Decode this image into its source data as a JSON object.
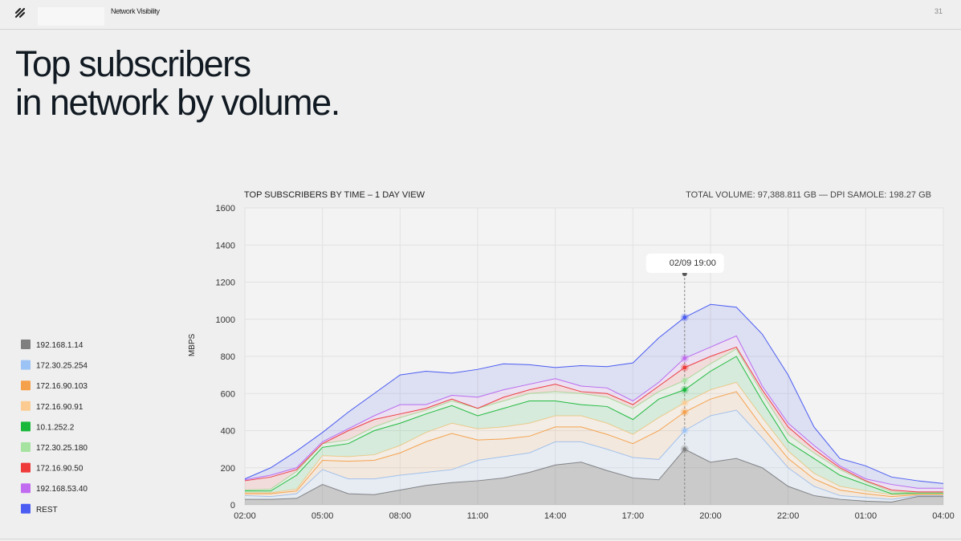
{
  "header": {
    "section": "Network Visibility",
    "page": "31"
  },
  "headline": [
    "Top subscribers",
    "in network by volume."
  ],
  "chart_data": {
    "type": "stacked-area",
    "title": "TOP SUBSCRIBERS BY TIME – 1 DAY VIEW",
    "subtitle": "TOTAL VOLUME: 97,388.811 GB — DPI SAMOLE: 198.27 GB",
    "ylabel": "MBPS",
    "tooltip": "02/09 19:00",
    "categories": [
      "02:00",
      null,
      null,
      "05:00",
      null,
      null,
      "08:00",
      null,
      null,
      "11:00",
      null,
      null,
      "14:00",
      null,
      null,
      "17:00",
      null,
      null,
      "20:00",
      null,
      null,
      "22:00",
      null,
      null,
      "01:00",
      null,
      null,
      "04:00"
    ],
    "ylim": [
      0,
      1600
    ],
    "yticks": [
      0,
      200,
      400,
      600,
      800,
      1000,
      1200,
      1400,
      1600
    ],
    "grid": true,
    "series": [
      {
        "name": "192.168.1.14",
        "color": "#7f7f7f",
        "values": [
          30,
          30,
          35,
          110,
          60,
          55,
          80,
          105,
          120,
          130,
          145,
          175,
          215,
          230,
          185,
          145,
          135,
          300,
          230,
          250,
          200,
          100,
          50,
          30,
          20,
          15,
          45,
          45
        ]
      },
      {
        "name": "172.30.25.254",
        "color": "#9cc3f5",
        "values": [
          20,
          15,
          25,
          80,
          80,
          85,
          80,
          70,
          70,
          110,
          115,
          105,
          125,
          110,
          115,
          110,
          110,
          100,
          250,
          260,
          160,
          100,
          50,
          20,
          20,
          15,
          5,
          5
        ]
      },
      {
        "name": "172.16.90.103",
        "color": "#f5a04a",
        "values": [
          10,
          15,
          15,
          50,
          95,
          100,
          120,
          165,
          195,
          110,
          95,
          90,
          80,
          80,
          80,
          75,
          155,
          100,
          90,
          100,
          60,
          50,
          40,
          30,
          20,
          15,
          5,
          5
        ]
      },
      {
        "name": "172.16.90.91",
        "color": "#fbcb92",
        "values": [
          5,
          5,
          10,
          25,
          25,
          30,
          40,
          50,
          55,
          60,
          65,
          70,
          60,
          60,
          60,
          50,
          70,
          50,
          50,
          50,
          50,
          40,
          30,
          20,
          15,
          10,
          5,
          5
        ]
      },
      {
        "name": "10.1.252.2",
        "color": "#19b83a",
        "values": [
          10,
          10,
          75,
          45,
          70,
          130,
          120,
          100,
          95,
          70,
          100,
          120,
          80,
          60,
          90,
          80,
          100,
          70,
          100,
          140,
          90,
          50,
          80,
          60,
          35,
          5,
          2,
          2
        ]
      },
      {
        "name": "172.30.25.180",
        "color": "#a6e3a1",
        "values": [
          5,
          10,
          20,
          20,
          20,
          20,
          30,
          20,
          25,
          40,
          40,
          40,
          50,
          60,
          50,
          60,
          40,
          50,
          40,
          40,
          40,
          40,
          30,
          30,
          15,
          10,
          3,
          3
        ]
      },
      {
        "name": "172.16.90.50",
        "color": "#ef3a3a",
        "values": [
          50,
          65,
          10,
          0,
          50,
          40,
          20,
          10,
          10,
          0,
          20,
          20,
          40,
          10,
          20,
          20,
          30,
          70,
          40,
          10,
          20,
          40,
          20,
          10,
          5,
          10,
          5,
          5
        ]
      },
      {
        "name": "192.168.53.40",
        "color": "#c16cf0",
        "values": [
          5,
          10,
          10,
          10,
          10,
          20,
          50,
          20,
          20,
          60,
          40,
          30,
          30,
          30,
          30,
          20,
          20,
          50,
          50,
          60,
          20,
          20,
          20,
          10,
          10,
          30,
          20,
          20
        ]
      },
      {
        "name": "REST",
        "color": "#4a5cf2",
        "values": [
          5,
          40,
          90,
          50,
          90,
          120,
          160,
          180,
          120,
          150,
          140,
          105,
          60,
          110,
          115,
          205,
          240,
          220,
          230,
          155,
          280,
          260,
          100,
          40,
          70,
          40,
          40,
          25
        ]
      }
    ]
  }
}
